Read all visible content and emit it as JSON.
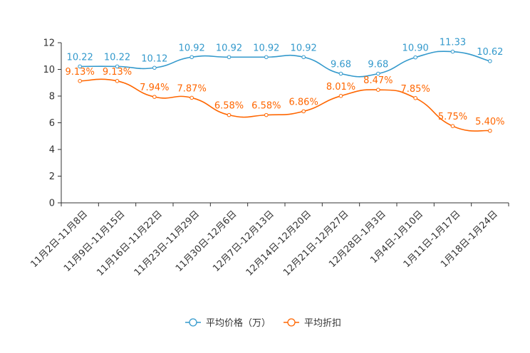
{
  "chart_data": {
    "type": "line",
    "categories": [
      "11月2日-11月8日",
      "11月9日-11月15日",
      "11月16日-11月22日",
      "11月23日-11月29日",
      "11月30日-12月6日",
      "12月7日-12月13日",
      "12月14日-12月20日",
      "12月21日-12月27日",
      "12月28日-1月3日",
      "1月4日-1月10日",
      "1月11日-1月17日",
      "1月18日-1月24日"
    ],
    "ylim": [
      0,
      12
    ],
    "yticks": [
      0,
      2,
      4,
      6,
      8,
      10,
      12
    ],
    "series": [
      {
        "name": "平均价格（万）",
        "color": "#3399cc",
        "values": [
          10.22,
          10.22,
          10.12,
          10.92,
          10.92,
          10.92,
          10.92,
          9.68,
          9.68,
          10.9,
          11.33,
          10.62
        ],
        "labels": [
          "10.22",
          "10.22",
          "10.12",
          "10.92",
          "10.92",
          "10.92",
          "10.92",
          "9.68",
          "9.68",
          "10.90",
          "11.33",
          "10.62"
        ]
      },
      {
        "name": "平均折扣",
        "color": "#ff6600",
        "values": [
          9.13,
          9.13,
          7.94,
          7.87,
          6.58,
          6.58,
          6.86,
          8.01,
          8.47,
          7.85,
          5.75,
          5.4
        ],
        "labels": [
          "9.13%",
          "9.13%",
          "7.94%",
          "7.87%",
          "6.58%",
          "6.58%",
          "6.86%",
          "8.01%",
          "8.47%",
          "7.85%",
          "5.75%",
          "5.40%"
        ]
      }
    ]
  }
}
